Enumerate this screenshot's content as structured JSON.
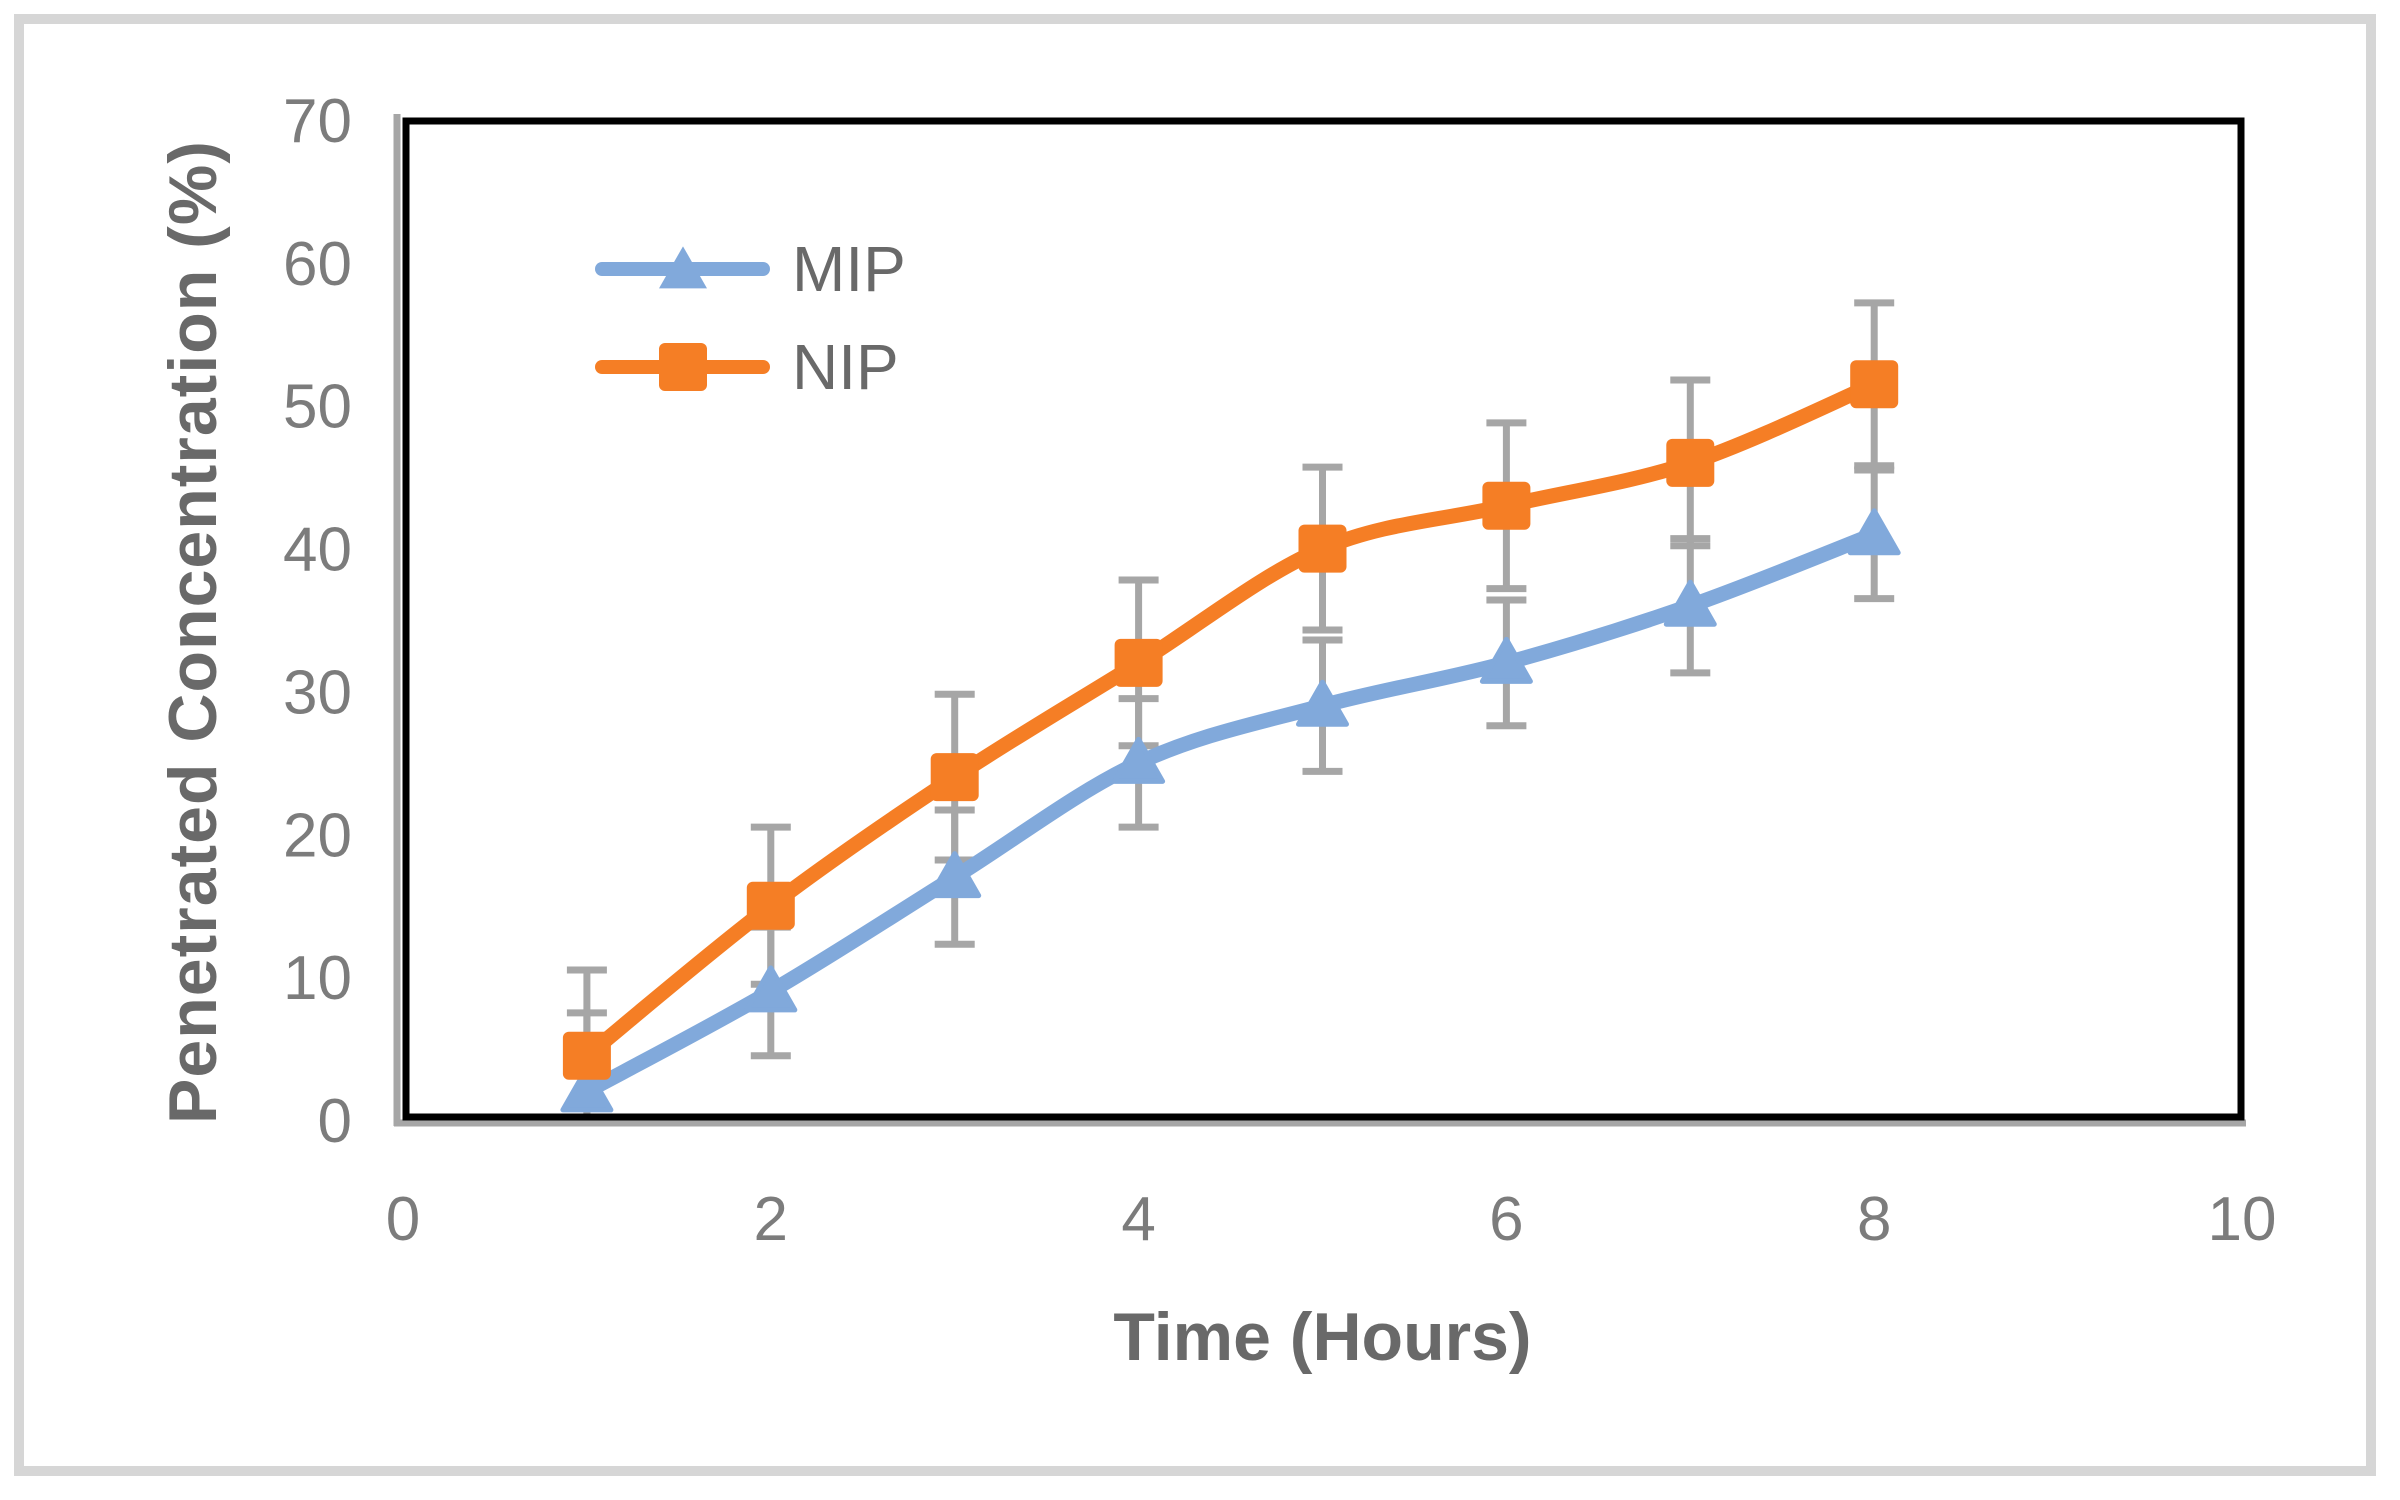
{
  "figure": {
    "background": "#ffffff",
    "border_color": "#d6d6d6"
  },
  "chart_data": {
    "type": "line",
    "title": "",
    "xlabel": "Time (Hours)",
    "ylabel": "Penetrated Concentration (%)",
    "xlim": [
      0,
      10
    ],
    "ylim": [
      0,
      70
    ],
    "xticks": [
      0,
      2,
      4,
      6,
      8,
      10
    ],
    "yticks": [
      0,
      10,
      20,
      30,
      40,
      50,
      60,
      70
    ],
    "grid": false,
    "legend_position": "upper-left-inside",
    "x": [
      1,
      2,
      3,
      4,
      5,
      6,
      7,
      8
    ],
    "series": [
      {
        "name": "MIP",
        "color": "#81a9db",
        "marker": "triangle",
        "values": [
          2,
          9,
          17,
          25,
          29,
          32,
          36,
          41
        ],
        "errors": [
          5.5,
          4.5,
          4.7,
          4.5,
          4.6,
          4.4,
          4.7,
          4.5
        ]
      },
      {
        "name": "NIP",
        "color": "#f57e25",
        "marker": "square",
        "values": [
          4.5,
          15,
          24,
          32,
          40,
          43,
          46,
          51.5
        ],
        "errors": [
          6.0,
          5.5,
          5.8,
          5.8,
          5.7,
          5.8,
          5.8,
          5.7
        ]
      }
    ],
    "styles": {
      "error_bar_color": "#a6a6a6",
      "axis_line_color": "#a6a6a6",
      "plot_border_color": "#000000",
      "tick_label_color": "#7c7c7c",
      "axis_title_color": "#696969",
      "line_width": 15,
      "error_bar_width": 7,
      "error_cap_halfwidth": 20
    }
  },
  "legend": {
    "items": [
      {
        "label": "MIP"
      },
      {
        "label": "NIP"
      }
    ]
  }
}
